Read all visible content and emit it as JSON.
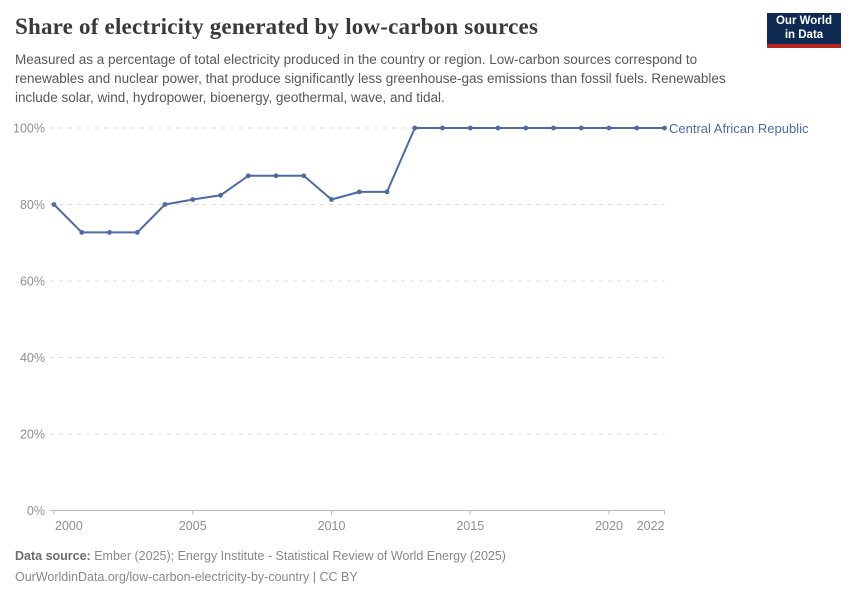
{
  "header": {
    "title": "Share of electricity generated by low-carbon sources",
    "subtitle": "Measured as a percentage of total electricity produced in the country or region. Low-carbon sources correspond to renewables and nuclear power, that produce significantly less greenhouse-gas emissions than fossil fuels. Renewables include solar, wind, hydropower, bioenergy, geothermal, wave, and tidal.",
    "logo": {
      "line1": "Our World",
      "line2": "in Data",
      "bg_color": "#0e2a52",
      "accent_color": "#b52520"
    }
  },
  "chart_data": {
    "type": "line",
    "title": "Share of electricity generated by low-carbon sources",
    "xlabel": "",
    "ylabel": "",
    "ylim": [
      0,
      100
    ],
    "yticks": [
      0,
      20,
      40,
      60,
      80,
      100
    ],
    "ytick_suffix": "%",
    "xticks": [
      2000,
      2005,
      2010,
      2015,
      2020,
      2022
    ],
    "grid": "horizontal-dashed",
    "legend_position": "right-of-line-end",
    "x": [
      2000,
      2001,
      2002,
      2003,
      2004,
      2005,
      2006,
      2007,
      2008,
      2009,
      2010,
      2011,
      2012,
      2013,
      2014,
      2015,
      2016,
      2017,
      2018,
      2019,
      2020,
      2021,
      2022
    ],
    "series": [
      {
        "name": "Central African Republic",
        "color": "#4c6ba3",
        "values": [
          80,
          72.7,
          72.7,
          72.7,
          80,
          81.3,
          82.4,
          87.5,
          87.5,
          87.5,
          81.3,
          83.3,
          83.3,
          100,
          100,
          100,
          100,
          100,
          100,
          100,
          100,
          100,
          100
        ]
      }
    ],
    "colors": {
      "gridline": "#dcdcdc",
      "axis": "#b9b9b9",
      "tick_label": "#8f8f8f"
    }
  },
  "footer": {
    "source_label": "Data source:",
    "source_text": "Ember (2025); Energy Institute - Statistical Review of World Energy (2025)",
    "note": "OurWorldinData.org/low-carbon-electricity-by-country | CC BY"
  }
}
